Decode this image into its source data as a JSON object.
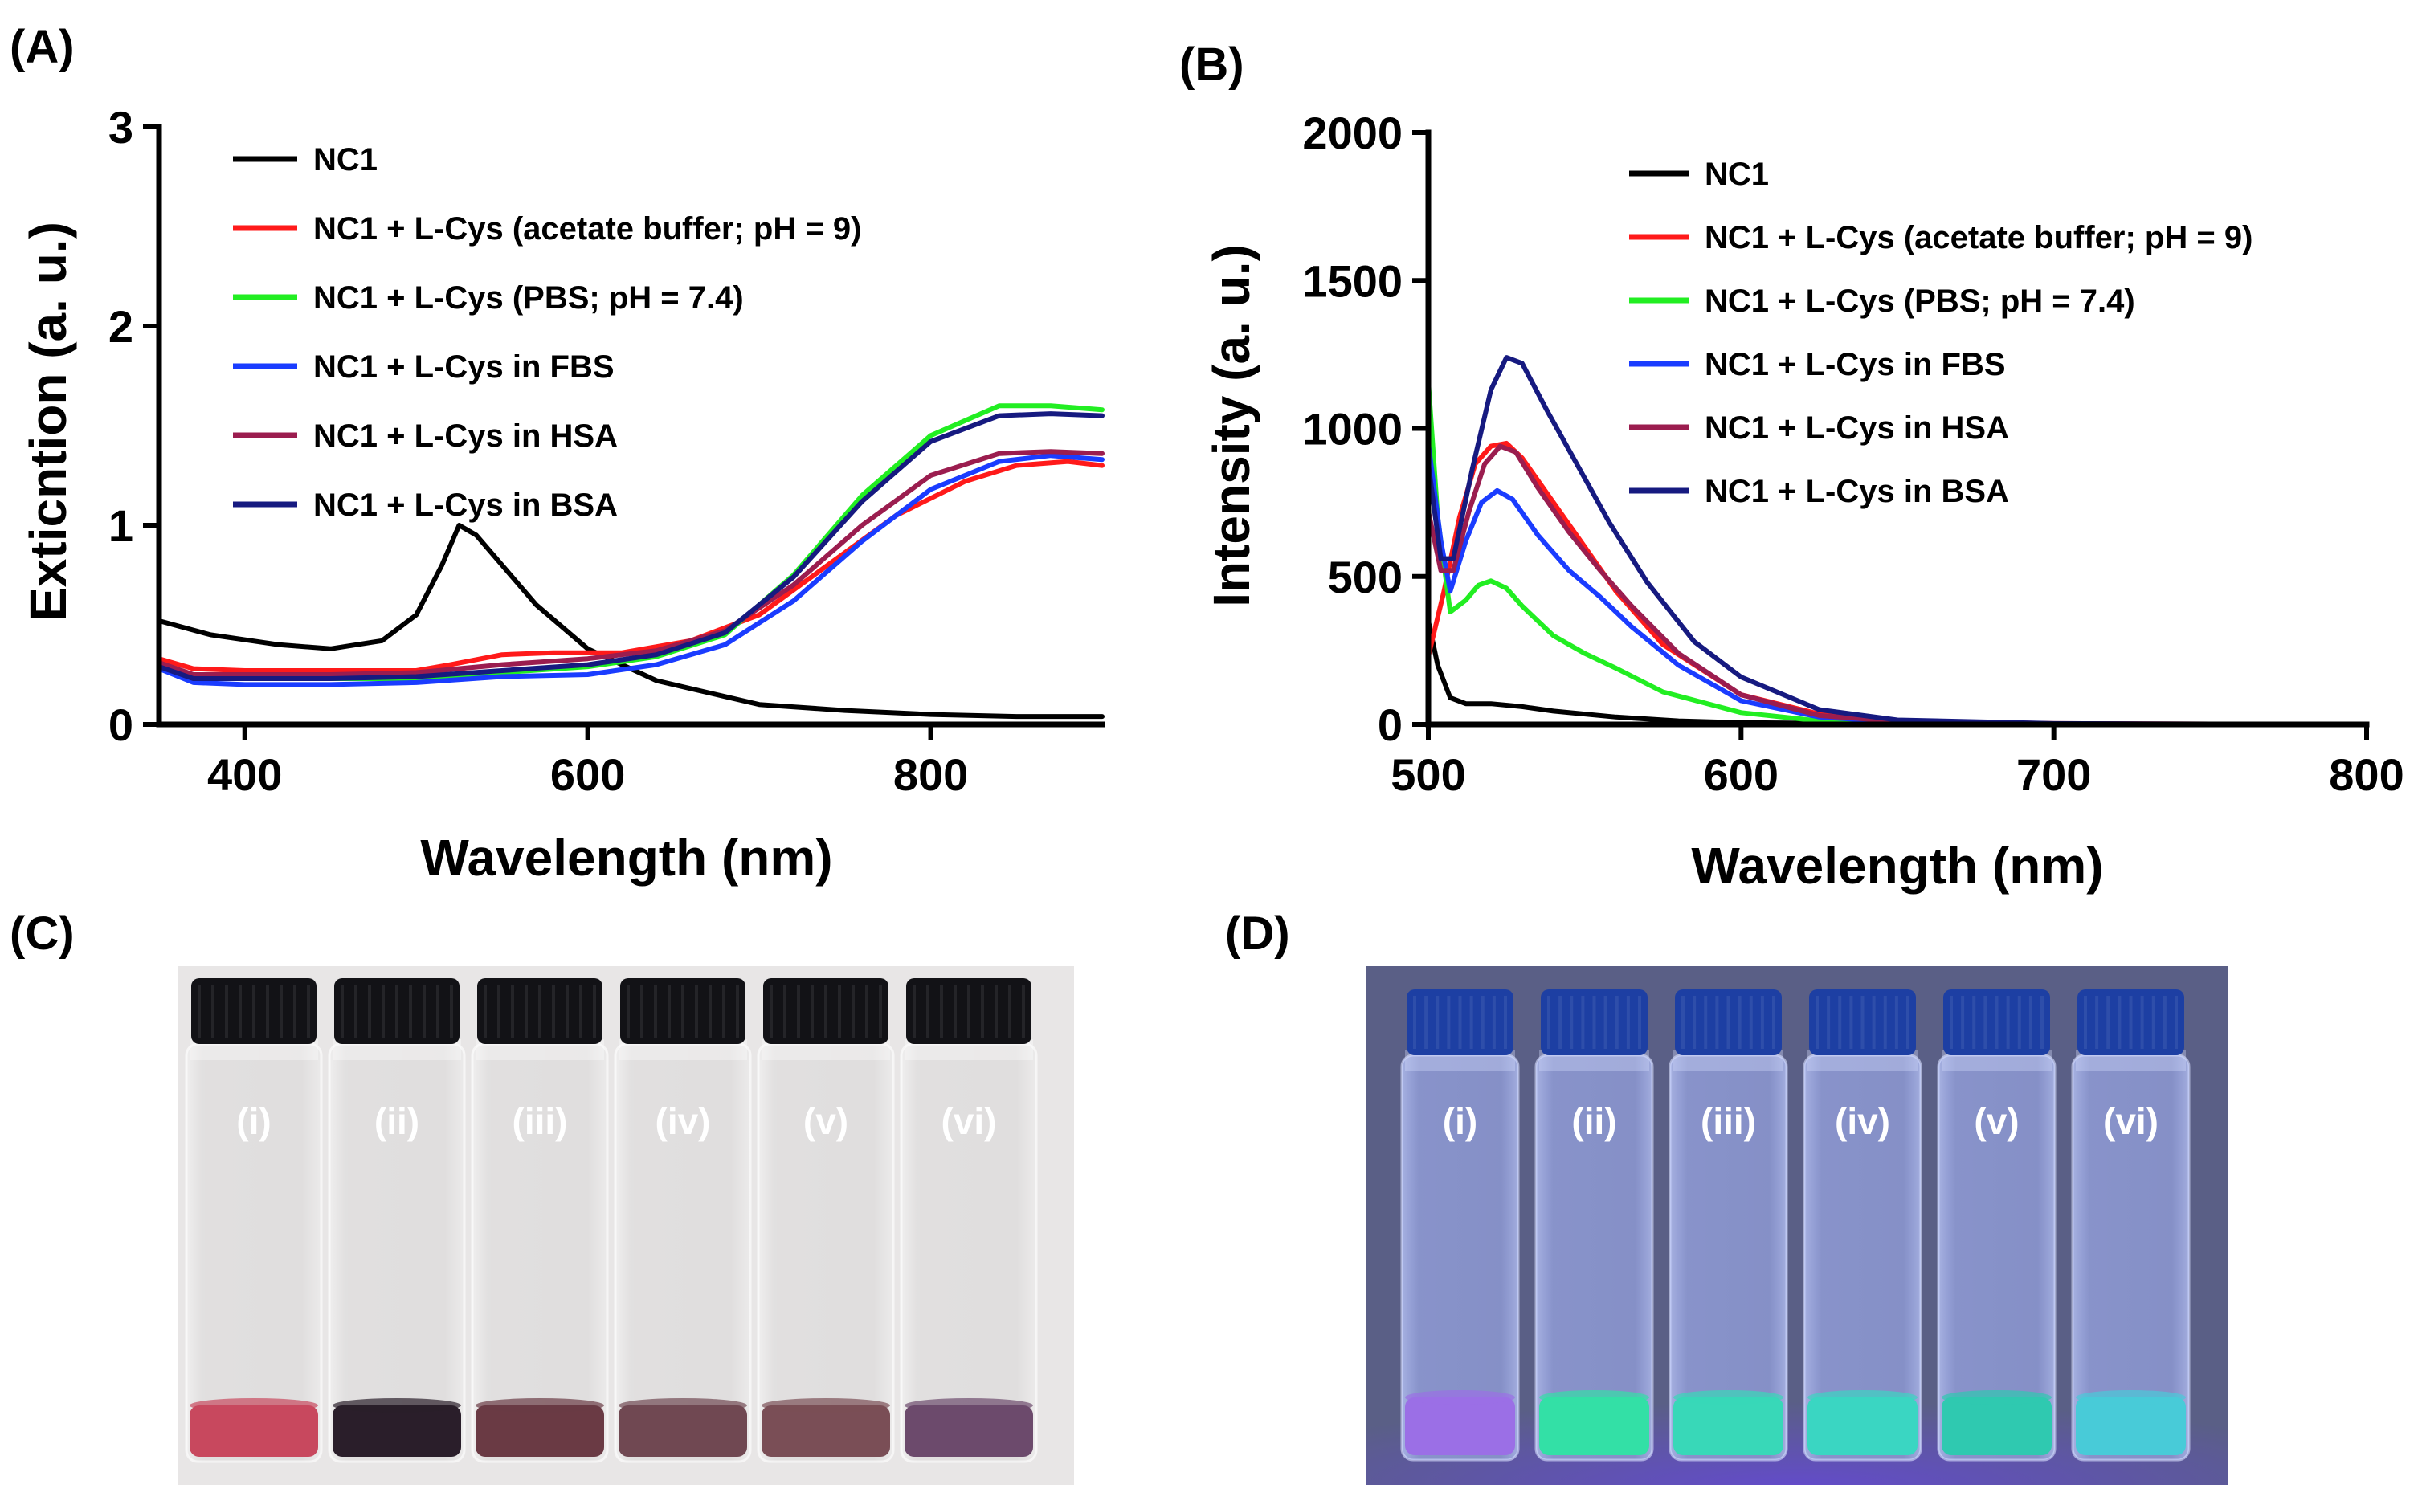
{
  "chart_data": [
    {
      "panel_label": "(A)",
      "type": "line",
      "xlabel": "Wavelength (nm)",
      "ylabel": "Exticntion  (a. u.)",
      "xlim": [
        350,
        900
      ],
      "ylim": [
        0,
        3
      ],
      "xticks": [
        400,
        600,
        800
      ],
      "yticks": [
        0,
        1,
        2,
        3
      ],
      "legend_position": "top-left",
      "series": [
        {
          "name": "NC1",
          "color": "#000000",
          "x": [
            350,
            380,
            420,
            450,
            480,
            500,
            515,
            525,
            535,
            550,
            570,
            600,
            640,
            680,
            700,
            750,
            800,
            850,
            900
          ],
          "y": [
            0.52,
            0.45,
            0.4,
            0.38,
            0.42,
            0.55,
            0.8,
            1.0,
            0.95,
            0.8,
            0.6,
            0.38,
            0.22,
            0.14,
            0.1,
            0.07,
            0.05,
            0.04,
            0.04
          ]
        },
        {
          "name": "NC1 + L-Cys (acetate buffer; pH = 9)",
          "color": "#ff1a1a",
          "x": [
            350,
            370,
            400,
            450,
            500,
            520,
            550,
            580,
            620,
            660,
            700,
            740,
            780,
            820,
            850,
            880,
            900
          ],
          "y": [
            0.33,
            0.28,
            0.27,
            0.27,
            0.27,
            0.3,
            0.35,
            0.36,
            0.36,
            0.42,
            0.55,
            0.8,
            1.05,
            1.22,
            1.3,
            1.32,
            1.3
          ]
        },
        {
          "name": "NC1 + L-Cys (PBS; pH = 7.4)",
          "color": "#22ee22",
          "x": [
            350,
            370,
            400,
            450,
            500,
            550,
            600,
            640,
            680,
            720,
            760,
            800,
            840,
            870,
            900
          ],
          "y": [
            0.3,
            0.24,
            0.23,
            0.23,
            0.23,
            0.26,
            0.29,
            0.34,
            0.45,
            0.75,
            1.15,
            1.45,
            1.6,
            1.6,
            1.58
          ]
        },
        {
          "name": "NC1 + L-Cys in FBS",
          "color": "#1a3cff",
          "x": [
            350,
            370,
            400,
            450,
            500,
            550,
            600,
            640,
            680,
            720,
            760,
            800,
            840,
            870,
            900
          ],
          "y": [
            0.28,
            0.21,
            0.2,
            0.2,
            0.21,
            0.24,
            0.25,
            0.3,
            0.4,
            0.62,
            0.92,
            1.18,
            1.32,
            1.35,
            1.33
          ]
        },
        {
          "name": "NC1 + L-Cys in HSA",
          "color": "#9b1d4f",
          "x": [
            350,
            370,
            400,
            450,
            500,
            550,
            600,
            640,
            680,
            720,
            760,
            800,
            840,
            870,
            900
          ],
          "y": [
            0.31,
            0.25,
            0.25,
            0.25,
            0.26,
            0.3,
            0.33,
            0.37,
            0.47,
            0.7,
            1.0,
            1.25,
            1.36,
            1.37,
            1.36
          ]
        },
        {
          "name": "NC1 + L-Cys in BSA",
          "color": "#161a80",
          "x": [
            350,
            370,
            400,
            450,
            500,
            550,
            600,
            640,
            680,
            720,
            760,
            800,
            840,
            870,
            900
          ],
          "y": [
            0.29,
            0.23,
            0.23,
            0.23,
            0.24,
            0.27,
            0.3,
            0.35,
            0.46,
            0.74,
            1.12,
            1.42,
            1.55,
            1.56,
            1.55
          ]
        }
      ]
    },
    {
      "panel_label": "(B)",
      "type": "line",
      "xlabel": "Wavelength (nm)",
      "ylabel": "Intensity  (a. u.)",
      "xlim": [
        500,
        800
      ],
      "ylim": [
        0,
        2000
      ],
      "xticks": [
        500,
        600,
        700,
        800
      ],
      "yticks": [
        0,
        500,
        1000,
        1500,
        2000
      ],
      "legend_position": "top-right",
      "series": [
        {
          "name": "NC1",
          "color": "#000000",
          "x": [
            500,
            503,
            507,
            512,
            520,
            530,
            540,
            560,
            580,
            600,
            650,
            700,
            800
          ],
          "y": [
            350,
            200,
            90,
            70,
            70,
            60,
            45,
            25,
            12,
            6,
            2,
            1,
            0
          ]
        },
        {
          "name": "NC1 + L-Cys (acetate buffer; pH = 9)",
          "color": "#ff1a1a",
          "x": [
            500,
            505,
            510,
            515,
            520,
            525,
            530,
            540,
            550,
            560,
            575,
            600,
            625,
            650,
            700,
            800
          ],
          "y": [
            230,
            450,
            700,
            880,
            940,
            950,
            900,
            750,
            600,
            450,
            270,
            100,
            35,
            12,
            3,
            0
          ]
        },
        {
          "name": "NC1 + L-Cys (PBS; pH = 7.4)",
          "color": "#22ee22",
          "x": [
            500,
            503,
            507,
            512,
            516,
            520,
            525,
            530,
            540,
            550,
            560,
            575,
            600,
            625,
            650,
            700,
            800
          ],
          "y": [
            1160,
            700,
            380,
            420,
            470,
            485,
            460,
            400,
            300,
            240,
            190,
            110,
            40,
            12,
            4,
            1,
            0
          ]
        },
        {
          "name": "NC1 + L-Cys in FBS",
          "color": "#1a3cff",
          "x": [
            500,
            504,
            507,
            512,
            517,
            522,
            527,
            535,
            545,
            555,
            565,
            580,
            600,
            625,
            650,
            700,
            800
          ],
          "y": [
            950,
            620,
            450,
            620,
            750,
            790,
            760,
            640,
            520,
            430,
            330,
            200,
            80,
            25,
            8,
            2,
            0
          ]
        },
        {
          "name": "NC1 + L-Cys in HSA",
          "color": "#9b1d4f",
          "x": [
            500,
            504,
            508,
            513,
            518,
            523,
            528,
            535,
            545,
            555,
            565,
            580,
            600,
            625,
            650,
            700,
            800
          ],
          "y": [
            720,
            520,
            520,
            720,
            880,
            940,
            920,
            800,
            650,
            520,
            400,
            240,
            100,
            30,
            10,
            2,
            0
          ]
        },
        {
          "name": "NC1 + L-Cys in BSA",
          "color": "#161a80",
          "x": [
            500,
            504,
            508,
            514,
            520,
            525,
            530,
            538,
            548,
            558,
            570,
            585,
            600,
            625,
            650,
            700,
            800
          ],
          "y": [
            880,
            560,
            560,
            860,
            1130,
            1240,
            1220,
            1060,
            870,
            680,
            480,
            280,
            160,
            50,
            15,
            3,
            0
          ]
        }
      ]
    }
  ],
  "photos": [
    {
      "panel_label": "(C)",
      "vial_labels": [
        "(i)",
        "(ii)",
        "(iii)",
        "(iv)",
        "(v)",
        "(vi)"
      ],
      "liquid_colors": [
        "#c8485e",
        "#2a1e2a",
        "#6a3a44",
        "#704852",
        "#7a4e56",
        "#6c4a6c"
      ],
      "background_color": "#e8e6e6",
      "cap_color": "#121216"
    },
    {
      "panel_label": "(D)",
      "vial_labels": [
        "(i)",
        "(ii)",
        "(iii)",
        "(iv)",
        "(v)",
        "(vi)"
      ],
      "liquid_colors": [
        "#9b6fe6",
        "#33e0a6",
        "#38d8b8",
        "#3ad6c2",
        "#2fc9b0",
        "#48cbd8"
      ],
      "background_color": "#5a5f86",
      "cap_color": "#1d3fa3"
    }
  ]
}
